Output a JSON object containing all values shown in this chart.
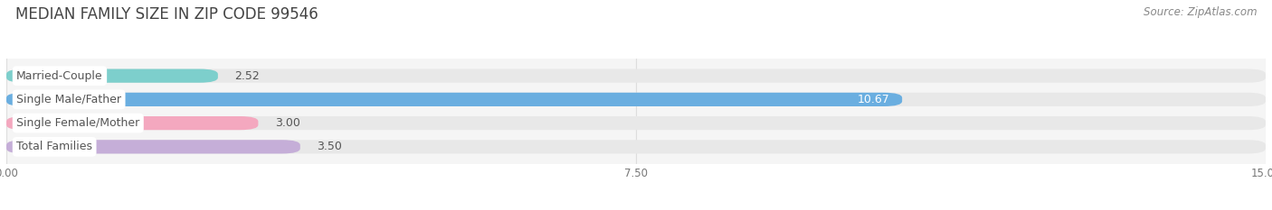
{
  "title": "MEDIAN FAMILY SIZE IN ZIP CODE 99546",
  "source": "Source: ZipAtlas.com",
  "categories": [
    "Married-Couple",
    "Single Male/Father",
    "Single Female/Mother",
    "Total Families"
  ],
  "values": [
    2.52,
    10.67,
    3.0,
    3.5
  ],
  "bar_colors": [
    "#7dcfcc",
    "#6aaee0",
    "#f4a8bf",
    "#c5aed8"
  ],
  "bar_bg_color": "#e8e8e8",
  "value_inside": [
    false,
    true,
    false,
    false
  ],
  "xlim": [
    0,
    15.0
  ],
  "xtick_values": [
    0.0,
    7.5,
    15.0
  ],
  "xtick_labels": [
    "0.00",
    "7.50",
    "15.00"
  ],
  "background_color": "#ffffff",
  "plot_bg_color": "#f5f5f5",
  "bar_height": 0.58,
  "title_fontsize": 12,
  "label_fontsize": 9,
  "value_fontsize": 9,
  "source_fontsize": 8.5,
  "grid_color": "#dddddd",
  "label_box_color": "#ffffff",
  "label_text_color": "#555555",
  "value_color_outside": "#555555",
  "value_color_inside": "#ffffff"
}
